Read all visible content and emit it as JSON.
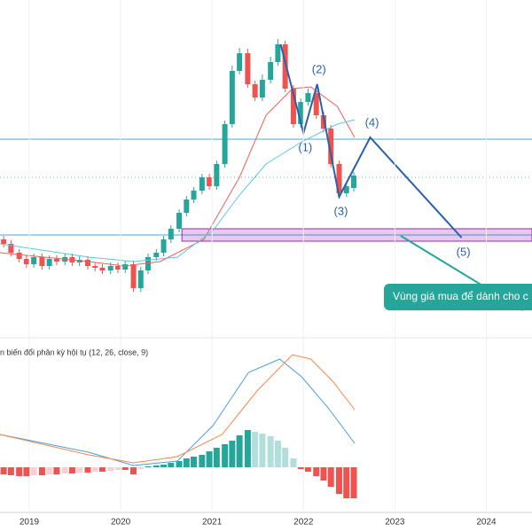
{
  "chart_data": [
    {
      "type": "candlestick",
      "x": [
        2018.72,
        2018.8,
        2018.89,
        2018.97,
        2019.05,
        2019.14,
        2019.22,
        2019.3,
        2019.39,
        2019.47,
        2019.55,
        2019.64,
        2019.72,
        2019.8,
        2019.89,
        2019.97,
        2020.05,
        2020.14,
        2020.22,
        2020.3,
        2020.39,
        2020.47,
        2020.55,
        2020.64,
        2020.72,
        2020.8,
        2020.89,
        2020.97,
        2021.05,
        2021.14,
        2021.22,
        2021.3,
        2021.39,
        2021.47,
        2021.55,
        2021.64,
        2021.72,
        2021.8,
        2021.89,
        2021.97,
        2022.05,
        2022.14,
        2022.22,
        2022.3,
        2022.39,
        2022.47,
        2022.55
      ],
      "open": [
        110,
        105,
        95,
        88,
        82,
        90,
        80,
        88,
        85,
        90,
        84,
        87,
        80,
        78,
        75,
        80,
        76,
        82,
        55,
        75,
        90,
        95,
        110,
        122,
        140,
        155,
        165,
        180,
        170,
        195,
        240,
        300,
        320,
        285,
        270,
        290,
        310,
        330,
        280,
        240,
        265,
        275,
        250,
        235,
        195,
        162,
        168
      ],
      "close": [
        105,
        95,
        88,
        82,
        90,
        80,
        88,
        85,
        90,
        84,
        87,
        80,
        78,
        75,
        80,
        76,
        82,
        55,
        75,
        90,
        95,
        110,
        122,
        140,
        155,
        165,
        180,
        170,
        195,
        240,
        300,
        320,
        285,
        270,
        290,
        310,
        330,
        280,
        240,
        265,
        275,
        250,
        235,
        195,
        162,
        170,
        182
      ],
      "high": [
        114,
        109,
        99,
        92,
        94,
        94,
        92,
        92,
        94,
        94,
        91,
        91,
        84,
        82,
        84,
        84,
        86,
        86,
        79,
        94,
        99,
        114,
        126,
        144,
        159,
        169,
        184,
        184,
        199,
        244,
        306,
        326,
        325,
        289,
        296,
        316,
        336,
        334,
        284,
        269,
        280,
        279,
        254,
        239,
        199,
        174,
        186
      ],
      "low": [
        101,
        91,
        84,
        78,
        78,
        76,
        76,
        81,
        81,
        80,
        80,
        76,
        74,
        71,
        71,
        72,
        72,
        51,
        51,
        71,
        86,
        91,
        106,
        118,
        136,
        151,
        161,
        166,
        166,
        191,
        236,
        296,
        281,
        266,
        266,
        286,
        306,
        276,
        236,
        236,
        261,
        246,
        231,
        191,
        158,
        158,
        164
      ],
      "up_color": "#26a69a",
      "down_color": "#ef5350",
      "xlim": [
        2018.68,
        2024.5
      ],
      "ylim": [
        0,
        380
      ],
      "overlays": [
        {
          "color": "#f0605a",
          "x": [
            2018.68,
            2019.65,
            2020.04,
            2020.43,
            2020.91,
            2021.3,
            2021.59,
            2021.88,
            2022.08,
            2022.37,
            2022.56
          ],
          "values": [
            95,
            85,
            80,
            85,
            110,
            180,
            250,
            280,
            282,
            260,
            225
          ]
        },
        {
          "color": "#5ac8e0",
          "x": [
            2018.68,
            2019.65,
            2020.14,
            2020.62,
            2021.01,
            2021.3,
            2021.59,
            2021.98,
            2022.37,
            2022.56
          ],
          "values": [
            105,
            90,
            85,
            90,
            120,
            160,
            195,
            220,
            240,
            245
          ]
        }
      ],
      "levels": [
        {
          "value": 223,
          "color": "#4aa8cf",
          "style": "solid"
        },
        {
          "value": 180,
          "color": "#6aa3b8",
          "style": "dotted"
        },
        {
          "value": 115,
          "color": "#4aa8cf",
          "style": "solid"
        }
      ],
      "zone": {
        "low": 108,
        "high": 122,
        "start": 2020.67,
        "color": "#9c27b0"
      },
      "wave": {
        "color": "#2962a8",
        "x": [
          2021.75,
          2022.0,
          2022.15,
          2022.39,
          2022.73,
          2023.73
        ],
        "values": [
          330,
          230,
          285,
          158,
          225,
          112
        ],
        "labels": [
          null,
          "(1)",
          "(2)",
          "(3)",
          "(4)",
          "(5)"
        ]
      },
      "callout": "Vùng giá mua để dành cho c"
    },
    {
      "type": "macd",
      "title": "n biến đổi phân kỳ hội tụ (12, 26, close, 9)",
      "x": [
        2018.72,
        2018.8,
        2018.89,
        2018.97,
        2019.05,
        2019.14,
        2019.22,
        2019.3,
        2019.39,
        2019.47,
        2019.55,
        2019.64,
        2019.72,
        2019.8,
        2019.89,
        2019.97,
        2020.05,
        2020.14,
        2020.22,
        2020.3,
        2020.39,
        2020.47,
        2020.55,
        2020.64,
        2020.72,
        2020.8,
        2020.89,
        2020.97,
        2021.05,
        2021.14,
        2021.22,
        2021.3,
        2021.39,
        2021.47,
        2021.55,
        2021.64,
        2021.72,
        2021.8,
        2021.89,
        2021.97,
        2022.05,
        2022.14,
        2022.22,
        2022.3,
        2022.39,
        2022.47,
        2022.55
      ],
      "histogram": [
        -8,
        -9,
        -10,
        -10,
        -9,
        -9,
        -8,
        -8,
        -7,
        -7,
        -6,
        -6,
        -5,
        -5,
        -4,
        -3,
        -3,
        -8,
        -2,
        1,
        2,
        3,
        5,
        7,
        10,
        12,
        14,
        18,
        22,
        26,
        30,
        36,
        42,
        40,
        38,
        35,
        30,
        22,
        10,
        -2,
        -5,
        -10,
        -15,
        -22,
        -30,
        -35,
        -35
      ],
      "colors": {
        "up_rising": "#26a69a",
        "up_falling": "#b2dfdb",
        "down_falling": "#ef5350",
        "down_rising": "#ffcdd2"
      },
      "lines": [
        {
          "color": "#4a9ee0",
          "x": [
            2018.68,
            2019.65,
            2020.14,
            2020.62,
            2021.01,
            2021.4,
            2021.74,
            2021.98,
            2022.27,
            2022.56
          ],
          "values": [
            37,
            17,
            2,
            7,
            47,
            107,
            122,
            102,
            67,
            27
          ]
        },
        {
          "color": "#f5894a",
          "x": [
            2018.68,
            2019.65,
            2020.14,
            2020.62,
            2021.11,
            2021.5,
            2021.88,
            2022.08,
            2022.32,
            2022.56
          ],
          "values": [
            37,
            14,
            5,
            12,
            37,
            87,
            127,
            122,
            97,
            65
          ]
        }
      ],
      "xlim": [
        2018.68,
        2024.5
      ],
      "ylim": [
        -53,
        147
      ],
      "xticks": [
        2019,
        2020,
        2021,
        2022,
        2023,
        2024
      ]
    }
  ]
}
